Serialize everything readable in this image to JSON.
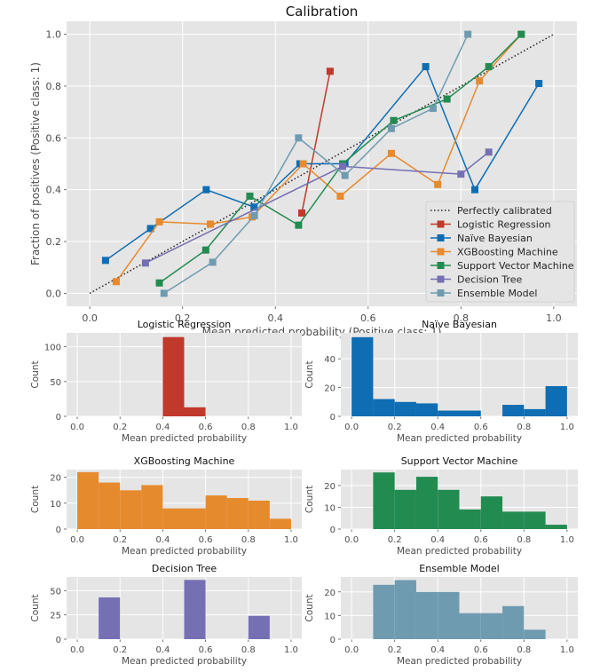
{
  "chart_data": [
    {
      "type": "line",
      "title": "Calibration",
      "xlabel": "Mean predicted probability (Positive class: 1)",
      "ylabel": "Fraction of positives (Positive class: 1)",
      "xlim": [
        -0.05,
        1.05
      ],
      "ylim": [
        -0.05,
        1.05
      ],
      "xticks": [
        "0.0",
        "0.2",
        "0.4",
        "0.6",
        "0.8",
        "1.0"
      ],
      "yticks": [
        "0.0",
        "0.2",
        "0.4",
        "0.6",
        "0.8",
        "1.0"
      ],
      "grid": true,
      "legend_position": "lower-right",
      "reference": {
        "name": "Perfectly calibrated",
        "x": [
          0,
          1
        ],
        "y": [
          0,
          1
        ],
        "color": "#000000",
        "style": "dotted"
      },
      "series": [
        {
          "name": "Logistic Regression",
          "color": "#c0392b",
          "x": [
            0.457,
            0.518
          ],
          "y": [
            0.31,
            0.857
          ]
        },
        {
          "name": "Naïve Bayesian",
          "color": "#0e6db3",
          "x": [
            0.034,
            0.131,
            0.251,
            0.354,
            0.453,
            0.55,
            0.724,
            0.83,
            0.968
          ],
          "y": [
            0.127,
            0.25,
            0.4,
            0.333,
            0.5,
            0.5,
            0.875,
            0.4,
            0.81
          ]
        },
        {
          "name": "XGBoosting Machine",
          "color": "#e68a2e",
          "x": [
            0.057,
            0.15,
            0.26,
            0.35,
            0.46,
            0.54,
            0.65,
            0.75,
            0.84,
            0.93
          ],
          "y": [
            0.045,
            0.276,
            0.267,
            0.295,
            0.5,
            0.375,
            0.54,
            0.42,
            0.82,
            1.0
          ]
        },
        {
          "name": "Support Vector Machine",
          "color": "#228b50",
          "x": [
            0.15,
            0.25,
            0.345,
            0.45,
            0.545,
            0.655,
            0.77,
            0.86,
            0.93
          ],
          "y": [
            0.04,
            0.167,
            0.375,
            0.263,
            0.5,
            0.667,
            0.75,
            0.875,
            1.0
          ]
        },
        {
          "name": "Decision Tree",
          "color": "#7570b3",
          "x": [
            0.12,
            0.545,
            0.8,
            0.86
          ],
          "y": [
            0.117,
            0.49,
            0.46,
            0.545
          ]
        },
        {
          "name": "Ensemble Model",
          "color": "#6f9bb1",
          "x": [
            0.16,
            0.265,
            0.355,
            0.45,
            0.55,
            0.65,
            0.74,
            0.815
          ],
          "y": [
            0.0,
            0.12,
            0.3,
            0.6,
            0.455,
            0.636,
            0.714,
            1.0
          ]
        }
      ]
    },
    {
      "type": "bar",
      "title": "Logistic Regression",
      "xlabel": "Mean predicted probability",
      "ylabel": "Count",
      "color": "#c0392b",
      "bin_edges": [
        0,
        0.1,
        0.2,
        0.3,
        0.4,
        0.5,
        0.6,
        0.7,
        0.8,
        0.9,
        1.0
      ],
      "values": [
        0,
        0,
        0,
        0,
        114,
        13,
        0,
        0,
        0,
        0
      ],
      "xlim": [
        -0.05,
        1.05
      ],
      "ylim": [
        0,
        120
      ],
      "yticks": [
        0,
        50,
        100
      ],
      "xticks": [
        "0.0",
        "0.2",
        "0.4",
        "0.6",
        "0.8",
        "1.0"
      ]
    },
    {
      "type": "bar",
      "title": "Naïve Bayesian",
      "xlabel": "Mean predicted probability",
      "ylabel": "Count",
      "color": "#0e6db3",
      "bin_edges": [
        0,
        0.1,
        0.2,
        0.3,
        0.4,
        0.5,
        0.6,
        0.7,
        0.8,
        0.9,
        1.0
      ],
      "values": [
        55,
        12,
        10,
        9,
        4,
        4,
        0,
        8,
        5,
        21
      ],
      "xlim": [
        -0.05,
        1.05
      ],
      "ylim": [
        0,
        58
      ],
      "yticks": [
        0,
        20,
        40
      ],
      "xticks": [
        "0.0",
        "0.2",
        "0.4",
        "0.6",
        "0.8",
        "1.0"
      ]
    },
    {
      "type": "bar",
      "title": "XGBoosting Machine",
      "xlabel": "Mean predicted probability",
      "ylabel": "Count",
      "color": "#e68a2e",
      "bin_edges": [
        0,
        0.1,
        0.2,
        0.3,
        0.4,
        0.5,
        0.6,
        0.7,
        0.8,
        0.9,
        1.0
      ],
      "values": [
        22,
        18,
        15,
        17,
        8,
        8,
        13,
        12,
        11,
        4
      ],
      "xlim": [
        -0.05,
        1.05
      ],
      "ylim": [
        0,
        23
      ],
      "yticks": [
        0,
        10,
        20
      ],
      "xticks": [
        "0.0",
        "0.2",
        "0.4",
        "0.6",
        "0.8",
        "1.0"
      ]
    },
    {
      "type": "bar",
      "title": "Support Vector Machine",
      "xlabel": "Mean predicted probability",
      "ylabel": "Count",
      "color": "#228b50",
      "bin_edges": [
        0,
        0.1,
        0.2,
        0.3,
        0.4,
        0.5,
        0.6,
        0.7,
        0.8,
        0.9,
        1.0
      ],
      "values": [
        0,
        26,
        18,
        24,
        18,
        9,
        15,
        8,
        8,
        2
      ],
      "xlim": [
        -0.05,
        1.05
      ],
      "ylim": [
        0,
        27.3
      ],
      "yticks": [
        0,
        10,
        20
      ],
      "xticks": [
        "0.0",
        "0.2",
        "0.4",
        "0.6",
        "0.8",
        "1.0"
      ]
    },
    {
      "type": "bar",
      "title": "Decision Tree",
      "xlabel": "Mean predicted probability",
      "ylabel": "Count",
      "color": "#7570b3",
      "bin_edges": [
        0,
        0.1,
        0.2,
        0.3,
        0.4,
        0.5,
        0.6,
        0.7,
        0.8,
        0.9,
        1.0
      ],
      "values": [
        0,
        43,
        0,
        0,
        0,
        61,
        0,
        0,
        24,
        0
      ],
      "xlim": [
        -0.05,
        1.05
      ],
      "ylim": [
        0,
        64
      ],
      "yticks": [
        0,
        25,
        50
      ],
      "xticks": [
        "0.0",
        "0.2",
        "0.4",
        "0.6",
        "0.8",
        "1.0"
      ]
    },
    {
      "type": "bar",
      "title": "Ensemble Model",
      "xlabel": "Mean predicted probability",
      "ylabel": "Count",
      "color": "#6f9bb1",
      "bin_edges": [
        0,
        0.1,
        0.2,
        0.3,
        0.4,
        0.5,
        0.6,
        0.7,
        0.8,
        0.9,
        1.0
      ],
      "values": [
        0,
        23,
        25,
        20,
        20,
        11,
        11,
        14,
        4,
        0
      ],
      "xlim": [
        -0.05,
        1.05
      ],
      "ylim": [
        0,
        26.3
      ],
      "yticks": [
        0,
        10,
        20
      ],
      "xticks": [
        "0.0",
        "0.2",
        "0.4",
        "0.6",
        "0.8",
        "1.0"
      ]
    }
  ]
}
